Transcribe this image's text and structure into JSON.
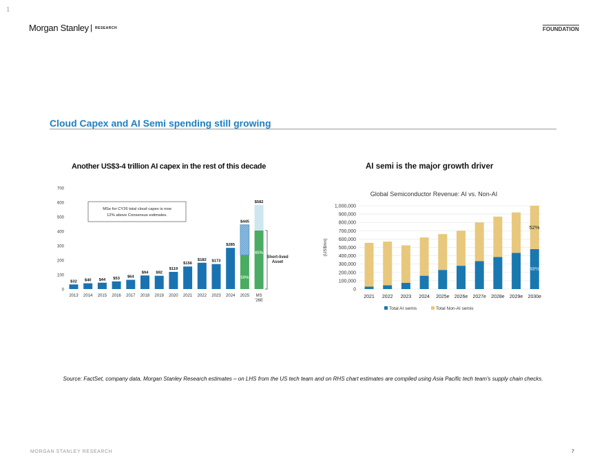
{
  "page_marker": "1",
  "header": {
    "brand": "Morgan Stanley",
    "separator": "|",
    "research": "RESEARCH",
    "section": "FOUNDATION"
  },
  "title": "Cloud Capex and AI Semi spending still growing",
  "left": {
    "heading": "Another US$3-4 trillion AI capex in the rest of this decade"
  },
  "right": {
    "heading": "AI semi is the major growth driver"
  },
  "source": "Source: FactSet, company data, Morgan Stanley Research estimates – on LHS from the US tech team and on RHS chart estimates are compiled using Asia Pacific tech team's supply chain checks.",
  "footer": {
    "text": "MORGAN STANLEY RESEARCH",
    "page": "7"
  },
  "chart_data": [
    {
      "type": "bar",
      "title": "",
      "categories": [
        "2013",
        "2014",
        "2015",
        "2016",
        "2017",
        "2018",
        "2019",
        "2020",
        "2021",
        "2022",
        "2023",
        "2024",
        "2025",
        "MS '26E"
      ],
      "values": [
        32,
        40,
        44,
        53,
        64,
        94,
        92,
        119,
        156,
        182,
        173,
        285,
        445,
        582
      ],
      "data_labels": [
        "$32",
        "$40",
        "$44",
        "$53",
        "$64",
        "$94",
        "$92",
        "$119",
        "$156",
        "$182",
        "$173",
        "$285",
        "$445",
        "$582"
      ],
      "short_lived_share": {
        "2025": {
          "value": 235,
          "label": "50%"
        },
        "MS '26E": {
          "value": 405,
          "label": "65%"
        }
      },
      "yticks": [
        "0",
        "100",
        "200",
        "300",
        "400",
        "500",
        "600",
        "700"
      ],
      "ylim": [
        0,
        700
      ],
      "annotation": "MSe for CY26 total cloud capex is now 12% above Consensus estimates.",
      "bracket_label": "Short-lived Asset",
      "colors": {
        "bar": "#1a73b0",
        "green": "#4aab62",
        "hatch": "#8fbfe0",
        "light": "#cde6ef"
      }
    },
    {
      "type": "bar",
      "stacked": true,
      "title": "Global Semiconductor Revenue: AI vs. Non-AI",
      "ylabel": "(US$mn)",
      "categories": [
        "2021",
        "2022",
        "2023",
        "2024",
        "2025e",
        "2026e",
        "2027e",
        "2028e",
        "2029e",
        "2030e"
      ],
      "series": [
        {
          "name": "Total AI semis",
          "color": "#1a78b0",
          "values": [
            30000,
            45000,
            75000,
            160000,
            230000,
            280000,
            335000,
            385000,
            435000,
            480000
          ]
        },
        {
          "name": "Total Non-AI semis",
          "color": "#e8c87c",
          "values": [
            525000,
            525000,
            450000,
            460000,
            430000,
            420000,
            465000,
            485000,
            485000,
            520000
          ]
        }
      ],
      "annotations": [
        "52%",
        "48%"
      ],
      "yticks": [
        "0",
        "100,000",
        "200,000",
        "300,000",
        "400,000",
        "500,000",
        "600,000",
        "700,000",
        "800,000",
        "900,000",
        "1,000,000"
      ],
      "ylim": [
        0,
        1000000
      ],
      "grid": true,
      "legend": "bottom"
    }
  ]
}
